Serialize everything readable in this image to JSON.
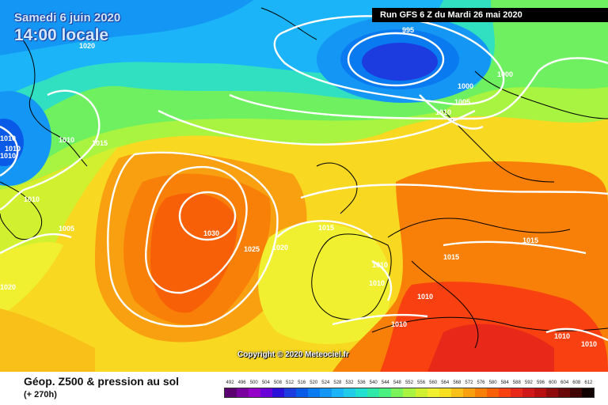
{
  "header": {
    "date_label": "Samedi 6 juin 2020",
    "time_label": "14:00 locale",
    "run_info": "Run GFS 6 Z du Mardi 26 mai 2020",
    "copyright": "Copyright © 2020 Meteociel.fr"
  },
  "legend": {
    "title": "Géop. Z500 & pression au sol",
    "subtitle": "(+ 270h)",
    "scale_values": [
      "492",
      "496",
      "500",
      "504",
      "508",
      "512",
      "516",
      "520",
      "524",
      "528",
      "532",
      "536",
      "540",
      "544",
      "548",
      "552",
      "556",
      "560",
      "564",
      "568",
      "572",
      "576",
      "580",
      "584",
      "588",
      "592",
      "596",
      "600",
      "604",
      "608",
      "612"
    ],
    "scale_colors": [
      "#5a0070",
      "#7a00a0",
      "#9400c8",
      "#6a00d8",
      "#2a10d8",
      "#1c3ce0",
      "#0a5ae8",
      "#0a7af0",
      "#1496f4",
      "#1cb4f8",
      "#20cce8",
      "#20e0d0",
      "#30e8a8",
      "#4af080",
      "#7af45a",
      "#a8f440",
      "#d0f030",
      "#f0f030",
      "#f8e020",
      "#f8c018",
      "#f8a010",
      "#f88008",
      "#f86008",
      "#f84010",
      "#e82818",
      "#d01818",
      "#b81010",
      "#900c0c",
      "#680808",
      "#400404",
      "#100000"
    ]
  },
  "isobars": [
    "995",
    "1000",
    "1000",
    "1005",
    "1010",
    "1010",
    "1020",
    "1010",
    "1015",
    "1010",
    "1005",
    "1030",
    "1025",
    "1020",
    "1015",
    "1010",
    "1010",
    "1015",
    "1015",
    "1010",
    "1010",
    "1010",
    "1010",
    "1010",
    "1010",
    "1020"
  ],
  "colors": {
    "run_box": "#000000",
    "isobar": "#ffffff",
    "title": "#cfe8ff"
  }
}
